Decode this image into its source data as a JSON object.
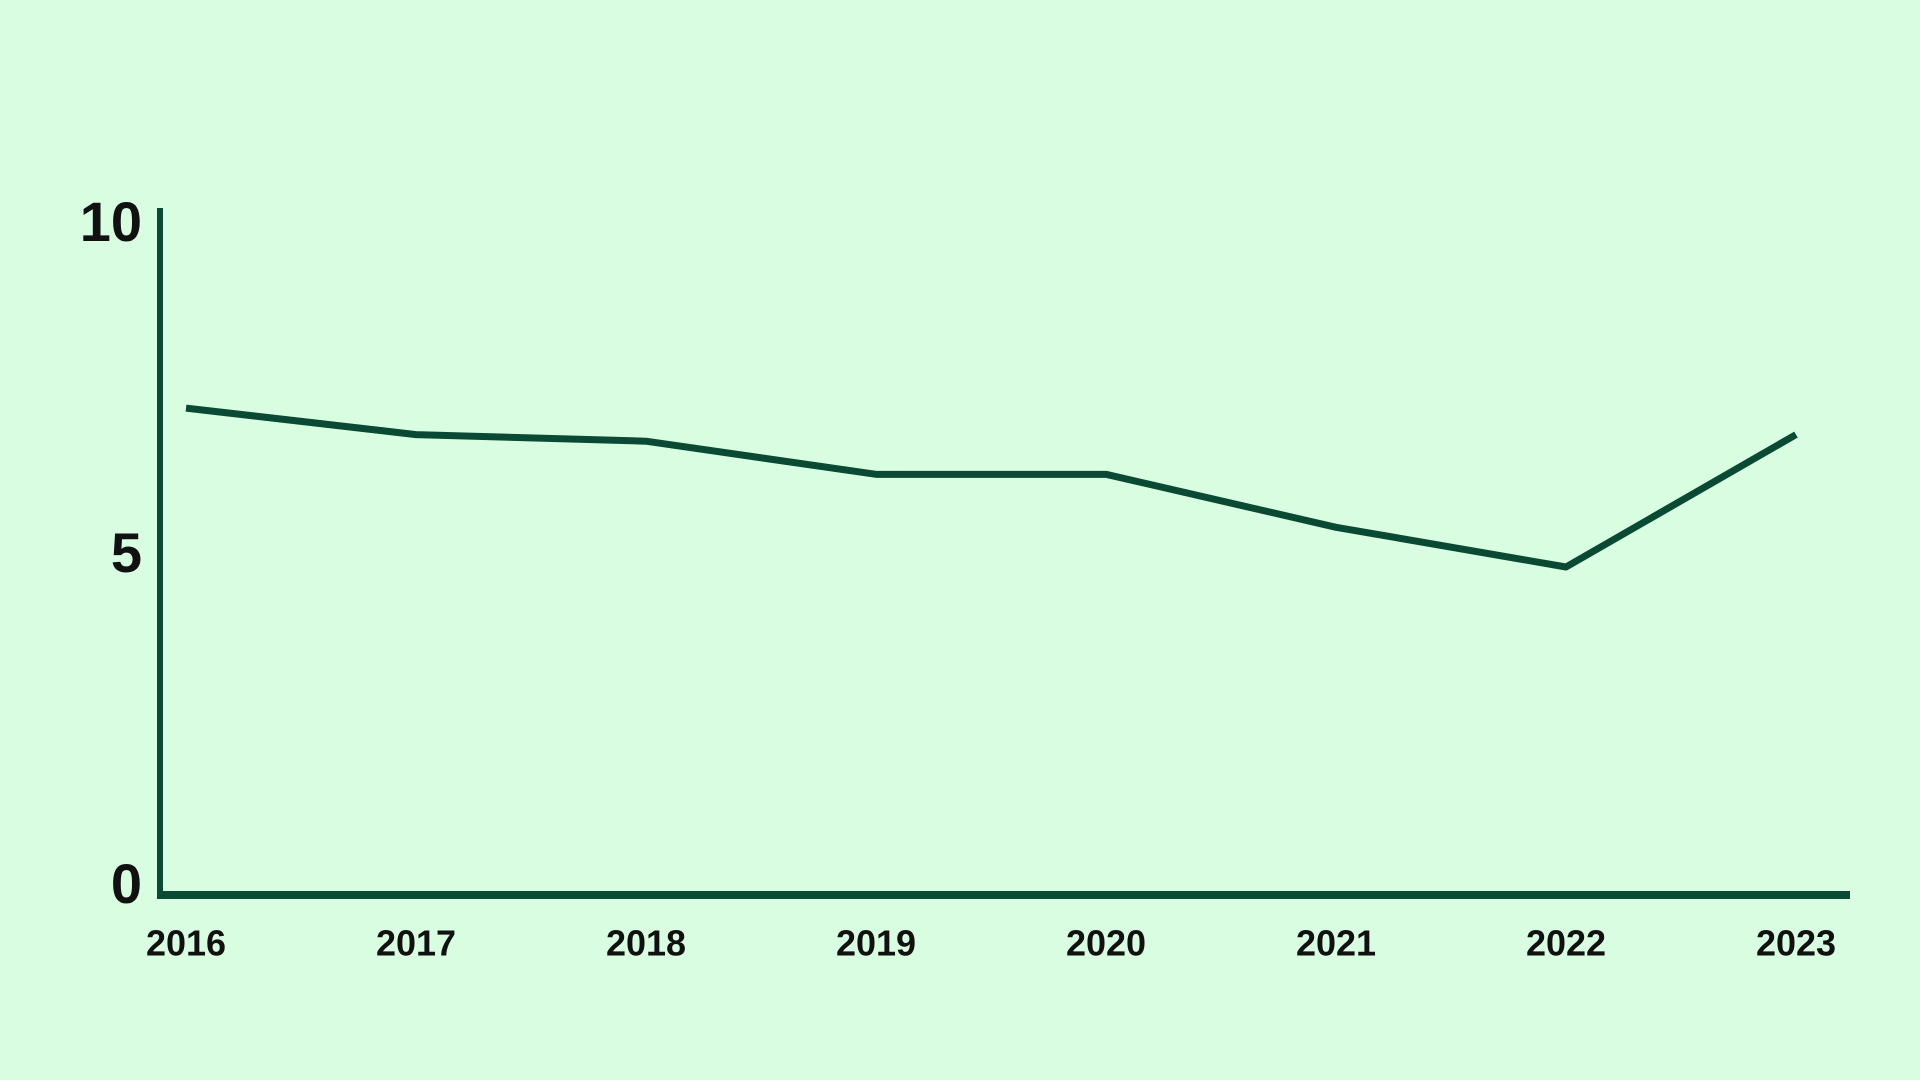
{
  "chart_data": {
    "type": "line",
    "x": [
      "2016",
      "2017",
      "2018",
      "2019",
      "2020",
      "2021",
      "2022",
      "2023"
    ],
    "series": [
      {
        "color": "#0a4a34",
        "values": [
          7.4,
          7.0,
          6.9,
          6.4,
          6.4,
          5.6,
          5.0,
          7.0
        ]
      }
    ],
    "ylim": [
      0,
      10
    ],
    "yticks": [
      0,
      5,
      10
    ],
    "background": "#d9fde1",
    "axis_color": "#0a4a34"
  }
}
